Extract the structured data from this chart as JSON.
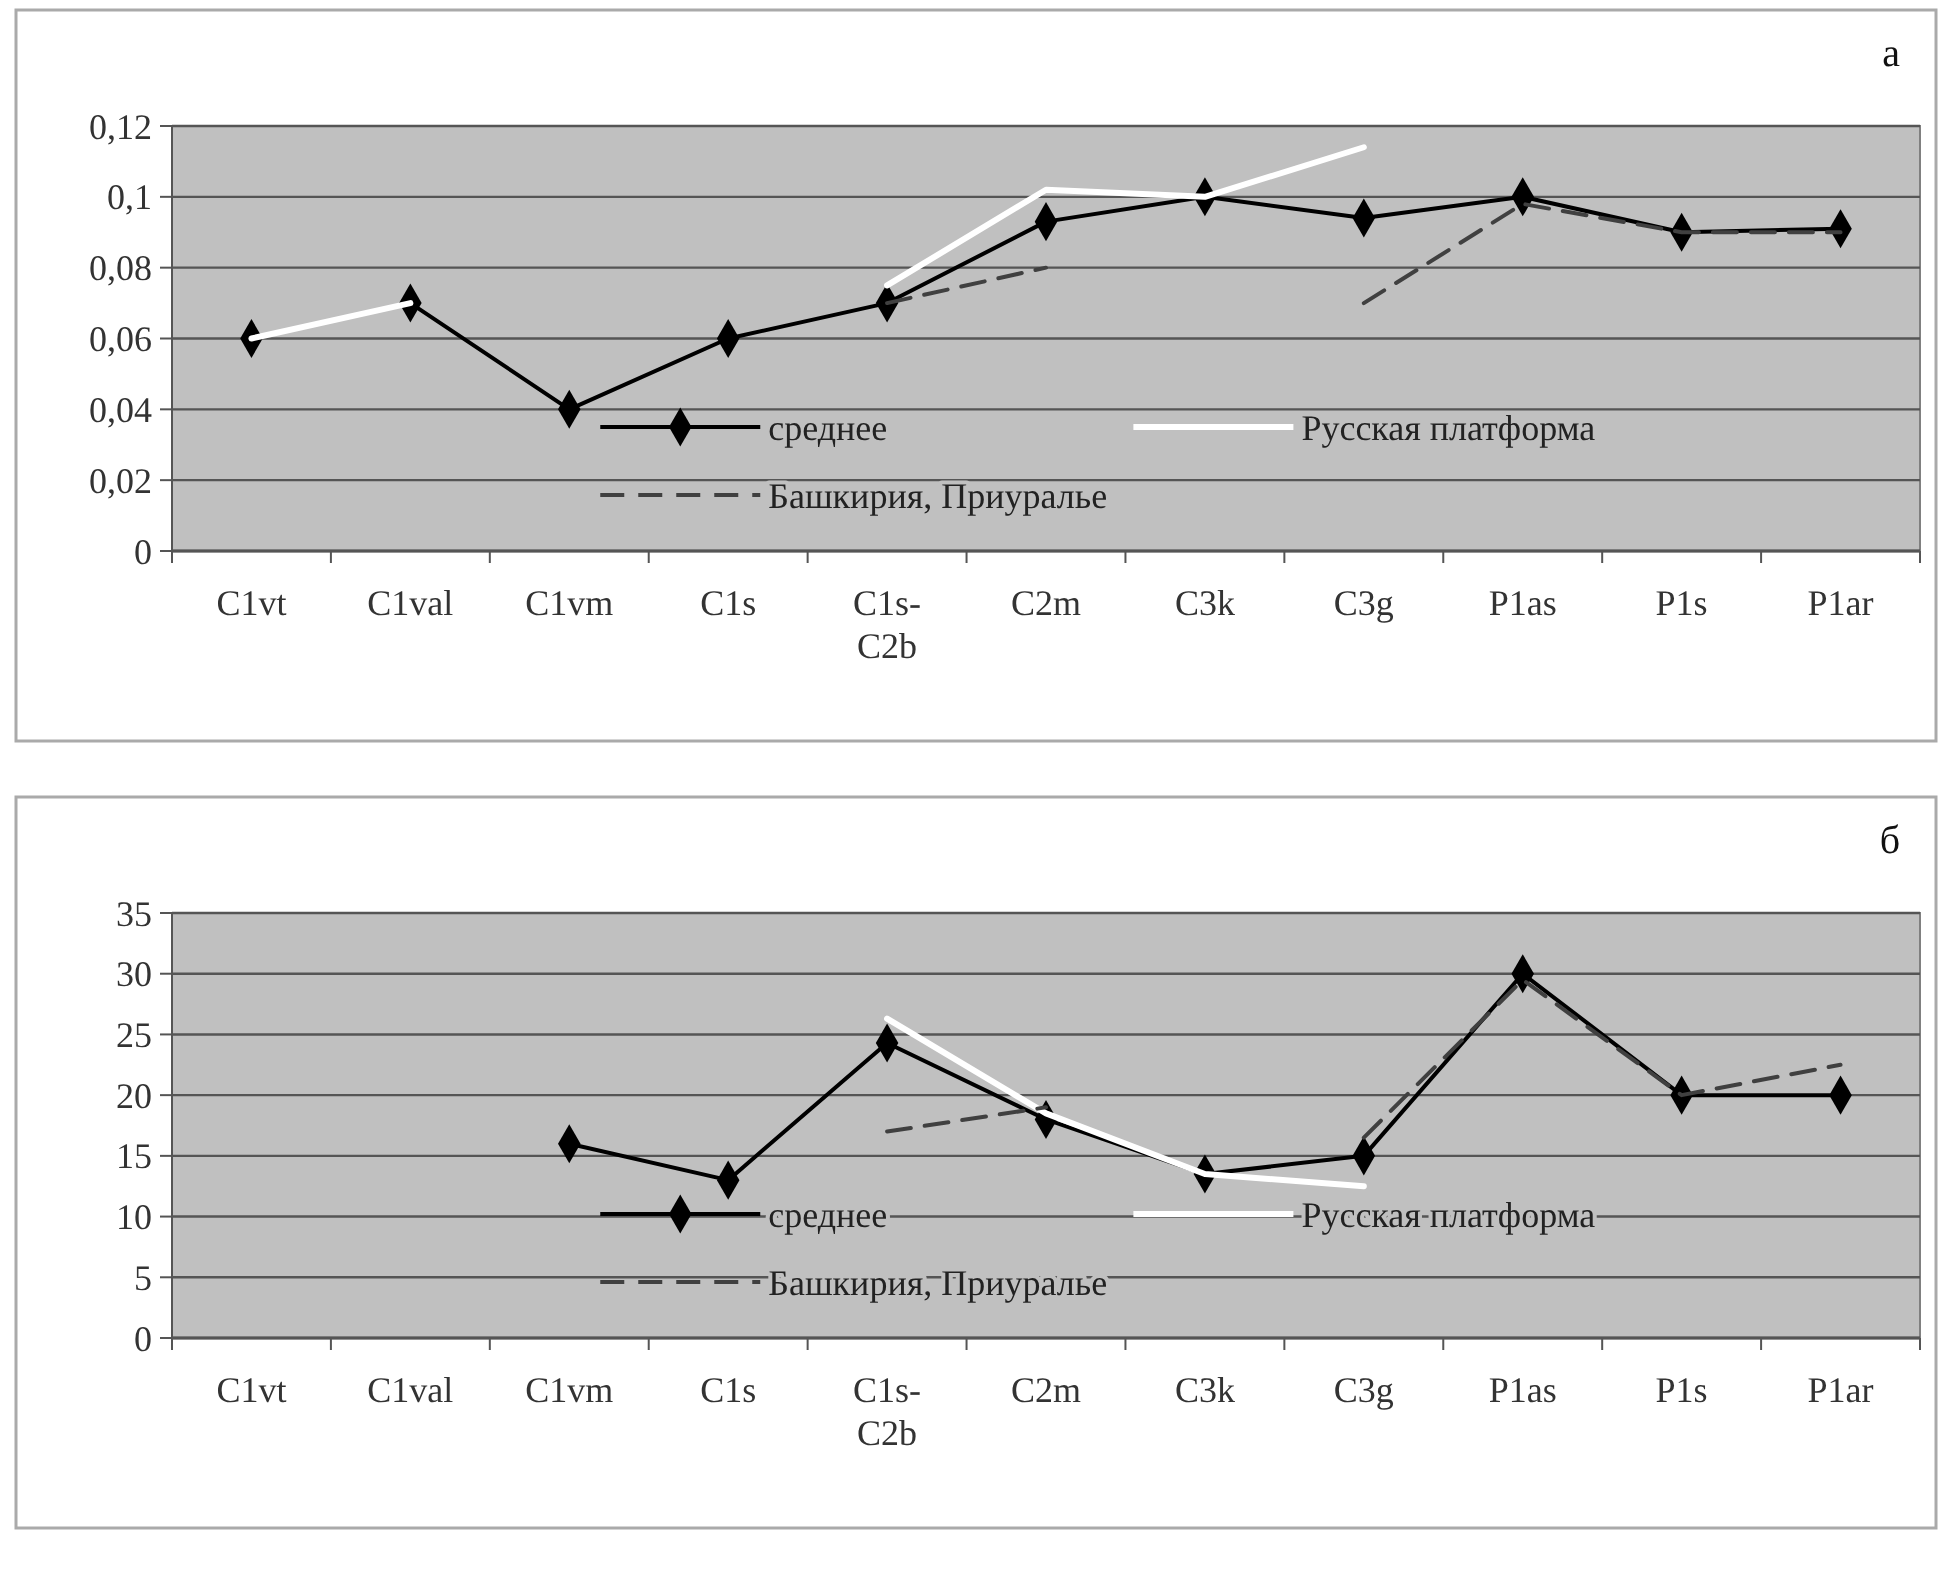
{
  "chart_data": [
    {
      "type": "line",
      "title": "а",
      "categories": [
        "C1vt",
        "C1val",
        "C1vm",
        "C1s",
        "C1s-C2b",
        "C2m",
        "C3k",
        "C3g",
        "P1as",
        "P1s",
        "P1ar"
      ],
      "series": [
        {
          "name": "среднее",
          "color": "#000000",
          "marker": "diamond",
          "line_style": "solid",
          "values": [
            0.06,
            0.07,
            0.04,
            0.06,
            0.07,
            0.093,
            0.1,
            0.094,
            0.1,
            0.09,
            0.091
          ]
        },
        {
          "name": "Русская платформа",
          "color": "#ffffff",
          "marker": "none",
          "line_style": "solid",
          "values": [
            0.06,
            0.07,
            null,
            null,
            0.075,
            0.102,
            0.1,
            0.114,
            null,
            null,
            null
          ]
        },
        {
          "name": "Башкирия, Приуралье",
          "color": "#404040",
          "marker": "none",
          "line_style": "dashed",
          "values": [
            null,
            null,
            null,
            null,
            0.07,
            0.08,
            null,
            0.07,
            0.098,
            0.09,
            0.09
          ]
        }
      ],
      "ylim": [
        0,
        0.12
      ],
      "yticks": [
        {
          "value": 0,
          "label": "0"
        },
        {
          "value": 0.02,
          "label": "0,02"
        },
        {
          "value": 0.04,
          "label": "0,04"
        },
        {
          "value": 0.06,
          "label": "0,06"
        },
        {
          "value": 0.08,
          "label": "0,08"
        },
        {
          "value": 0.1,
          "label": "0,1"
        },
        {
          "value": 0.12,
          "label": "0,12"
        }
      ],
      "grid": "y",
      "legend": "bottom"
    },
    {
      "type": "line",
      "title": "б",
      "categories": [
        "C1vt",
        "C1val",
        "C1vm",
        "C1s",
        "C1s-C2b",
        "C2m",
        "C3k",
        "C3g",
        "P1as",
        "P1s",
        "P1ar"
      ],
      "series": [
        {
          "name": "среднее",
          "color": "#000000",
          "marker": "diamond",
          "line_style": "solid",
          "values": [
            null,
            null,
            16,
            13,
            24.3,
            18,
            13.5,
            15,
            30,
            20,
            20
          ]
        },
        {
          "name": "Русская платформа",
          "color": "#ffffff",
          "marker": "none",
          "line_style": "solid",
          "values": [
            null,
            null,
            null,
            null,
            26.3,
            18.5,
            13.5,
            12.5,
            null,
            null,
            null
          ]
        },
        {
          "name": "Башкирия, Приуралье",
          "color": "#404040",
          "marker": "none",
          "line_style": "dashed",
          "values": [
            null,
            null,
            null,
            null,
            17,
            19,
            null,
            16.5,
            29.5,
            20,
            22.5
          ]
        }
      ],
      "ylim": [
        0,
        35
      ],
      "yticks": [
        0,
        5,
        10,
        15,
        20,
        25,
        30,
        35
      ],
      "grid": "y",
      "legend": "bottom"
    }
  ]
}
